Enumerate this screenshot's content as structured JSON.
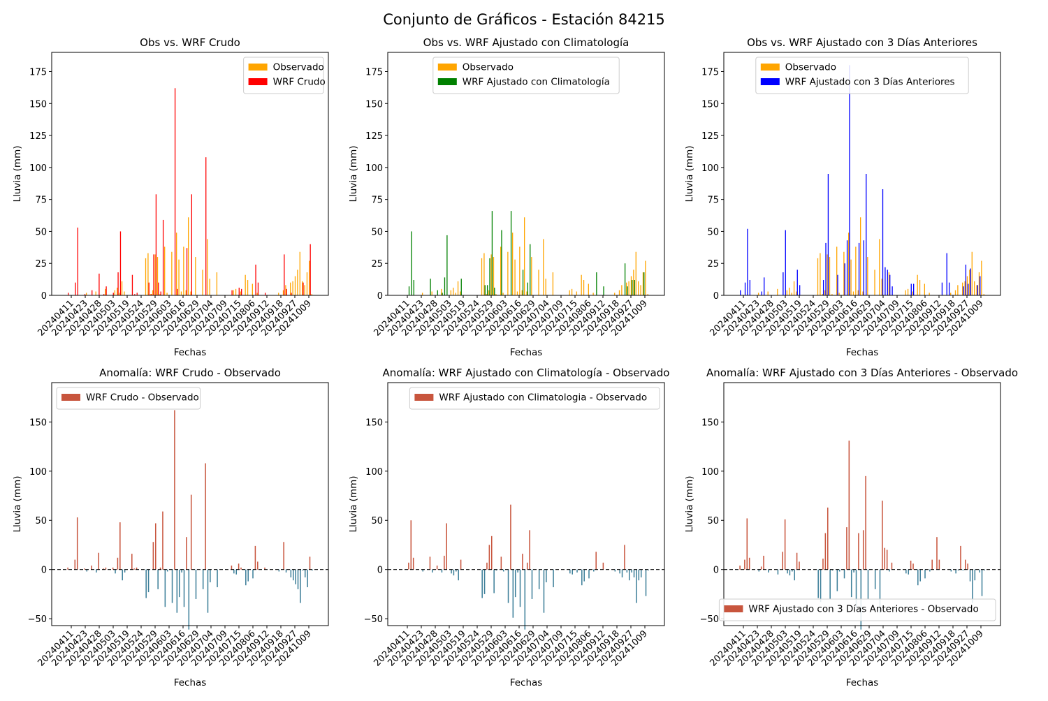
{
  "suptitle": "Conjunto de Gráficos - Estación 84215",
  "colors": {
    "observado": "#ffa500",
    "wrf_crudo": "#ff0000",
    "wrf_clim": "#008000",
    "wrf_3dias": "#0000ff",
    "anom_pos": "#c8553d",
    "anom_neg": "#3d7f99"
  },
  "x_tick_labels": [
    "20240411",
    "20240423",
    "20240428",
    "20240503",
    "20240519",
    "20240524",
    "20240529",
    "20240603",
    "20240616",
    "20240629",
    "20240704",
    "20240709",
    "20240715",
    "20240806",
    "20240912",
    "20240918",
    "20240927",
    "20241009"
  ],
  "chart_data": [
    {
      "id": "p1",
      "type": "bar",
      "title": "Obs vs. WRF Crudo",
      "xlabel": "Fechas",
      "ylabel": "Lluvia (mm)",
      "ylim": [
        0,
        190
      ],
      "yticks": [
        0,
        25,
        50,
        75,
        100,
        125,
        150,
        175
      ],
      "legend": "upper right",
      "series": [
        {
          "name": "Observado",
          "color": "#ffa500",
          "values": [
            0,
            0,
            0,
            0,
            0,
            0,
            0,
            0,
            0,
            2,
            0,
            0,
            0,
            3,
            0,
            0,
            0,
            5,
            0,
            0,
            0,
            4,
            6,
            2,
            11,
            3,
            0,
            0,
            0,
            0,
            0,
            0,
            0,
            0,
            29,
            33,
            1,
            4,
            32,
            30,
            1,
            0,
            38,
            2,
            0,
            34,
            0,
            49,
            28,
            3,
            38,
            4,
            61,
            3,
            0,
            30,
            0,
            0,
            20,
            0,
            44,
            13,
            0,
            0,
            18,
            0,
            0,
            0,
            0,
            0,
            0,
            4,
            5,
            0,
            3,
            0,
            16,
            12,
            0,
            9,
            0,
            2,
            0,
            0,
            0,
            0,
            0,
            0,
            0,
            0,
            2,
            0,
            4,
            8,
            0,
            10,
            11,
            15,
            20,
            34,
            11,
            8,
            18,
            27,
            1,
            0
          ]
        },
        {
          "name": "WRF Crudo",
          "color": "#ff0000",
          "values": [
            0,
            2,
            0,
            0,
            10,
            53,
            0,
            0,
            1,
            0,
            0,
            4,
            0,
            0,
            17,
            0,
            1,
            7,
            0,
            0,
            2,
            0,
            18,
            50,
            0,
            0,
            0,
            0,
            16,
            1,
            2,
            0,
            0,
            0,
            0,
            10,
            1,
            32,
            79,
            10,
            3,
            59,
            0,
            0,
            0,
            0,
            162,
            5,
            0,
            0,
            0,
            37,
            0,
            79,
            0,
            0,
            0,
            0,
            0,
            108,
            0,
            0,
            0,
            0,
            0,
            0,
            0,
            0,
            0,
            0,
            4,
            0,
            0,
            6,
            5,
            0,
            0,
            0,
            0,
            0,
            24,
            10,
            0,
            0,
            2,
            0,
            0,
            0,
            0,
            0,
            0,
            0,
            32,
            5,
            0,
            2,
            0,
            0,
            0,
            0,
            10,
            0,
            0,
            40,
            0,
            0
          ]
        }
      ]
    },
    {
      "id": "p2",
      "type": "bar",
      "title": "Obs vs. WRF Ajustado con Climatología",
      "xlabel": "Fechas",
      "ylabel": "Lluvia (mm)",
      "ylim": [
        0,
        190
      ],
      "yticks": [
        0,
        25,
        50,
        75,
        100,
        125,
        150,
        175
      ],
      "legend": "upper center",
      "series": [
        {
          "name": "Observado",
          "color": "#ffa500",
          "values": [
            0,
            0,
            0,
            0,
            0,
            0,
            0,
            0,
            0,
            2,
            0,
            0,
            0,
            3,
            0,
            0,
            0,
            5,
            0,
            0,
            0,
            4,
            6,
            2,
            11,
            3,
            0,
            0,
            0,
            0,
            0,
            0,
            0,
            0,
            29,
            33,
            1,
            4,
            32,
            30,
            1,
            0,
            38,
            2,
            0,
            34,
            0,
            49,
            28,
            3,
            38,
            4,
            61,
            3,
            0,
            30,
            0,
            0,
            20,
            0,
            44,
            13,
            0,
            0,
            18,
            0,
            0,
            0,
            0,
            0,
            0,
            4,
            5,
            0,
            3,
            0,
            16,
            12,
            0,
            9,
            0,
            2,
            0,
            0,
            0,
            0,
            0,
            0,
            0,
            0,
            2,
            0,
            4,
            8,
            0,
            10,
            11,
            15,
            20,
            34,
            11,
            8,
            18,
            27,
            1,
            0
          ]
        },
        {
          "name": "WRF Ajustado con Climatología",
          "color": "#008000",
          "values": [
            0,
            0,
            0,
            7,
            50,
            12,
            0,
            0,
            0,
            0,
            0,
            0,
            13,
            0,
            0,
            4,
            0,
            2,
            14,
            47,
            0,
            0,
            0,
            0,
            0,
            13,
            0,
            0,
            0,
            0,
            0,
            0,
            0,
            0,
            0,
            8,
            8,
            29,
            66,
            6,
            0,
            0,
            51,
            0,
            0,
            0,
            66,
            0,
            0,
            0,
            0,
            20,
            0,
            10,
            40,
            0,
            0,
            0,
            0,
            0,
            0,
            0,
            0,
            0,
            0,
            0,
            0,
            0,
            0,
            0,
            0,
            0,
            0,
            0,
            0,
            0,
            0,
            0,
            0,
            0,
            0,
            0,
            18,
            0,
            0,
            7,
            0,
            0,
            0,
            0,
            0,
            0,
            0,
            0,
            25,
            7,
            0,
            12,
            12,
            0,
            0,
            0,
            18,
            0,
            0,
            0
          ]
        }
      ]
    },
    {
      "id": "p3",
      "type": "bar",
      "title": "Obs vs. WRF Ajustado con 3 Días Anteriores",
      "xlabel": "Fechas",
      "ylabel": "Lluvia (mm)",
      "ylim": [
        0,
        190
      ],
      "yticks": [
        0,
        25,
        50,
        75,
        100,
        125,
        150,
        175
      ],
      "legend": "upper center",
      "series": [
        {
          "name": "Observado",
          "color": "#ffa500",
          "values": [
            0,
            0,
            0,
            0,
            0,
            0,
            0,
            0,
            0,
            2,
            0,
            0,
            0,
            3,
            0,
            0,
            0,
            5,
            0,
            0,
            0,
            4,
            6,
            2,
            11,
            3,
            0,
            0,
            0,
            0,
            0,
            0,
            0,
            0,
            29,
            33,
            1,
            4,
            32,
            30,
            1,
            0,
            38,
            2,
            0,
            34,
            0,
            49,
            28,
            3,
            38,
            4,
            61,
            3,
            0,
            30,
            0,
            0,
            20,
            0,
            44,
            13,
            0,
            0,
            18,
            0,
            0,
            0,
            0,
            0,
            0,
            4,
            5,
            0,
            3,
            0,
            16,
            12,
            0,
            9,
            0,
            2,
            0,
            0,
            0,
            0,
            0,
            0,
            0,
            0,
            2,
            0,
            4,
            8,
            0,
            10,
            11,
            15,
            20,
            34,
            11,
            8,
            18,
            27,
            1,
            0
          ]
        },
        {
          "name": "WRF Ajustado con 3 Días Anteriores",
          "color": "#0000ff",
          "values": [
            0,
            4,
            0,
            10,
            52,
            12,
            0,
            0,
            0,
            0,
            3,
            14,
            0,
            0,
            0,
            0,
            0,
            0,
            0,
            18,
            51,
            0,
            0,
            0,
            0,
            20,
            8,
            0,
            0,
            0,
            0,
            0,
            0,
            0,
            0,
            0,
            12,
            41,
            95,
            0,
            0,
            0,
            16,
            0,
            0,
            25,
            43,
            180,
            0,
            0,
            0,
            41,
            0,
            43,
            95,
            0,
            0,
            0,
            0,
            0,
            0,
            83,
            22,
            20,
            16,
            7,
            0,
            0,
            0,
            0,
            0,
            0,
            0,
            9,
            9,
            0,
            0,
            0,
            0,
            0,
            0,
            0,
            0,
            0,
            0,
            0,
            10,
            0,
            33,
            10,
            0,
            0,
            0,
            0,
            0,
            7,
            24,
            9,
            21,
            0,
            0,
            8,
            15,
            0,
            0,
            0
          ]
        }
      ]
    },
    {
      "id": "p4",
      "type": "bar",
      "title": "Anomalía: WRF Crudo - Observado",
      "xlabel": "Fechas",
      "ylabel": "Lluvia (mm)",
      "ylim": [
        -57,
        190
      ],
      "yticks": [
        -50,
        0,
        50,
        100,
        150
      ],
      "legend": "upper left",
      "series": [
        {
          "name": "WRF Crudo - Observado",
          "color": "#c8553d",
          "neg_color": "#3d7f99",
          "values": [
            0,
            2,
            0,
            0,
            10,
            53,
            0,
            0,
            1,
            -2,
            0,
            4,
            0,
            -3,
            17,
            0,
            1,
            2,
            0,
            0,
            2,
            -4,
            12,
            48,
            -11,
            -3,
            0,
            0,
            16,
            1,
            2,
            0,
            0,
            0,
            -29,
            -23,
            0,
            28,
            47,
            -20,
            2,
            59,
            -38,
            -2,
            0,
            -34,
            162,
            -44,
            -28,
            -3,
            -38,
            33,
            -61,
            76,
            0,
            -30,
            0,
            0,
            -20,
            108,
            -44,
            -13,
            0,
            0,
            -18,
            0,
            0,
            0,
            0,
            0,
            4,
            -4,
            -5,
            6,
            2,
            0,
            -16,
            -12,
            0,
            -9,
            24,
            8,
            0,
            0,
            2,
            0,
            0,
            0,
            0,
            0,
            -2,
            0,
            28,
            -3,
            0,
            -8,
            -11,
            -15,
            -20,
            -34,
            -1,
            -8,
            -18,
            13,
            -1,
            0
          ]
        }
      ]
    },
    {
      "id": "p5",
      "type": "bar",
      "title": "Anomalía: WRF Ajustado con Climatología - Observado",
      "xlabel": "Fechas",
      "ylabel": "Lluvia (mm)",
      "ylim": [
        -57,
        190
      ],
      "yticks": [
        -50,
        0,
        50,
        100,
        150
      ],
      "legend": "upper right",
      "series": [
        {
          "name": "WRF Ajustado con Climatologia - Observado",
          "color": "#c8553d",
          "neg_color": "#3d7f99",
          "values": [
            0,
            0,
            0,
            7,
            50,
            12,
            0,
            0,
            0,
            -2,
            0,
            0,
            13,
            -3,
            0,
            4,
            0,
            -3,
            14,
            47,
            0,
            -4,
            -6,
            -2,
            -11,
            10,
            0,
            0,
            0,
            0,
            0,
            0,
            0,
            0,
            -29,
            -25,
            7,
            25,
            34,
            -24,
            -1,
            0,
            13,
            -2,
            0,
            -34,
            66,
            -49,
            -28,
            -3,
            -38,
            16,
            -61,
            7,
            40,
            -30,
            0,
            0,
            -20,
            0,
            -44,
            -13,
            0,
            0,
            -18,
            0,
            0,
            0,
            0,
            0,
            0,
            -4,
            -5,
            0,
            -3,
            0,
            -16,
            -12,
            0,
            -9,
            0,
            -2,
            18,
            0,
            0,
            7,
            0,
            0,
            0,
            0,
            -2,
            0,
            -4,
            -8,
            25,
            -3,
            -11,
            -3,
            -8,
            -34,
            -11,
            -8,
            0,
            -27,
            -1,
            0
          ]
        }
      ]
    },
    {
      "id": "p6",
      "type": "bar",
      "title": "Anomalía: WRF Ajustado con 3 Días Anteriores - Observado",
      "xlabel": "Fechas",
      "ylabel": "Lluvia (mm)",
      "ylim": [
        -57,
        190
      ],
      "yticks": [
        -50,
        0,
        50,
        100,
        150
      ],
      "legend": "lower right",
      "series": [
        {
          "name": "WRF Ajustado con 3 Días Anteriores - Observado",
          "color": "#c8553d",
          "neg_color": "#3d7f99",
          "values": [
            0,
            4,
            0,
            10,
            52,
            12,
            0,
            0,
            0,
            -2,
            3,
            14,
            0,
            -3,
            0,
            0,
            0,
            -5,
            0,
            18,
            51,
            -4,
            -6,
            -2,
            -11,
            17,
            8,
            0,
            0,
            0,
            0,
            0,
            0,
            0,
            -29,
            -33,
            11,
            37,
            63,
            -30,
            -1,
            0,
            -22,
            -2,
            0,
            -9,
            43,
            131,
            -28,
            -3,
            -38,
            37,
            -61,
            40,
            95,
            -30,
            0,
            0,
            -20,
            0,
            -44,
            70,
            22,
            20,
            -2,
            7,
            0,
            0,
            0,
            0,
            0,
            -4,
            -5,
            9,
            6,
            0,
            -16,
            -12,
            0,
            -9,
            0,
            -2,
            10,
            0,
            33,
            10,
            0,
            0,
            0,
            0,
            -2,
            0,
            -4,
            -1,
            24,
            -1,
            10,
            6,
            -12,
            -34,
            -11,
            0,
            -3,
            -27,
            -1,
            0
          ]
        }
      ]
    }
  ]
}
